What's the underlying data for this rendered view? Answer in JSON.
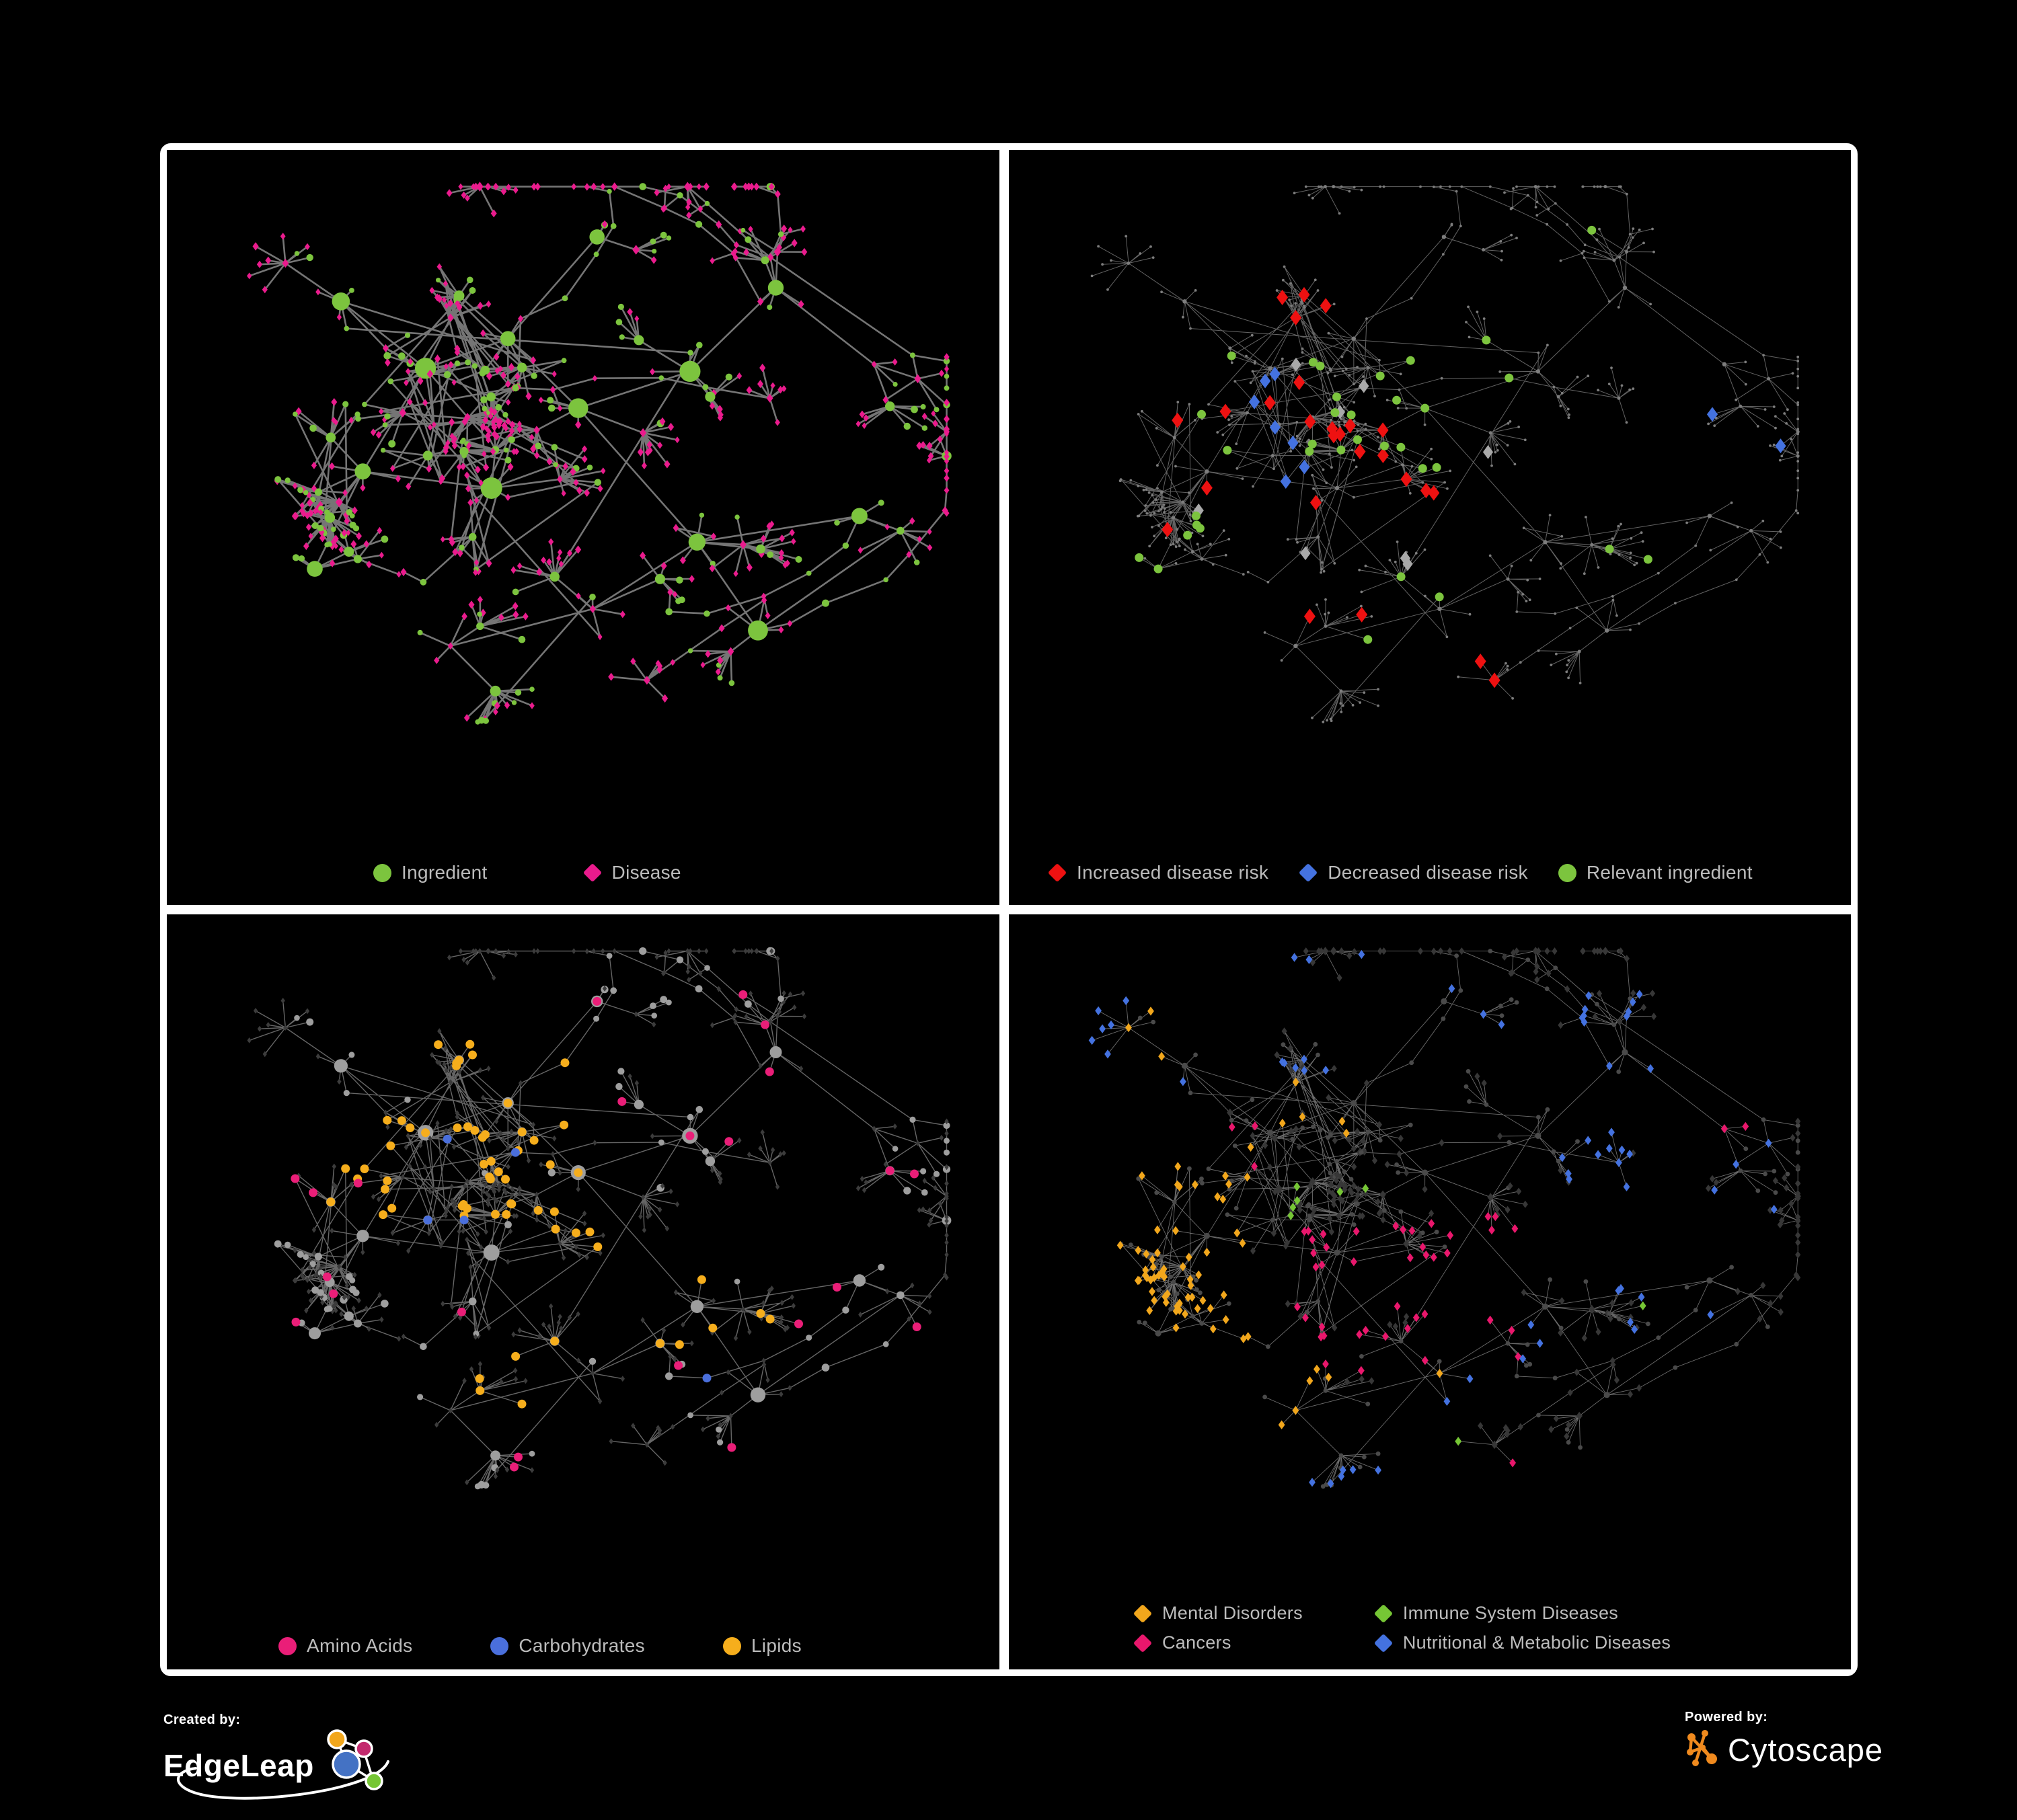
{
  "page": {
    "background": "#000000",
    "frame_color": "#ffffff",
    "legend_text_color": "#bcbcbc"
  },
  "panels": [
    {
      "id": "ingredient-disease",
      "legend": [
        {
          "label": "Ingredient",
          "shape": "circle",
          "color": "#7cc43e"
        },
        {
          "label": "Disease",
          "shape": "diamond",
          "color": "#ea1b8d"
        }
      ]
    },
    {
      "id": "disease-risk",
      "legend": [
        {
          "label": "Increased disease risk",
          "shape": "diamond",
          "color": "#ee1111"
        },
        {
          "label": "Decreased disease risk",
          "shape": "diamond",
          "color": "#4472e0"
        },
        {
          "label": "Relevant ingredient",
          "shape": "circle",
          "color": "#7cc43e"
        }
      ],
      "highlights": [
        {
          "name": "increased-disease-risk",
          "shape": "diamond",
          "color": "#ee1111",
          "size": 10,
          "regions": [
            [
              0.16,
              0.18,
              0.58,
              0.56,
              22
            ],
            [
              0.55,
              0.7,
              0.72,
              0.88,
              2
            ],
            [
              0.88,
              0.14,
              0.97,
              0.26,
              1
            ],
            [
              0.3,
              0.58,
              0.42,
              0.68,
              2
            ]
          ]
        },
        {
          "name": "decreased-disease-risk",
          "shape": "diamond",
          "color": "#4472e0",
          "size": 9.5,
          "regions": [
            [
              0.2,
              0.3,
              0.34,
              0.52,
              7
            ],
            [
              0.86,
              0.36,
              0.96,
              0.46,
              2
            ]
          ]
        },
        {
          "name": "no-significant-effect",
          "shape": "diamond",
          "color": "#a9a9a9",
          "size": 9,
          "regions": [
            [
              0.2,
              0.25,
              0.6,
              0.6,
              8
            ]
          ]
        },
        {
          "name": "relevant-ingredient",
          "shape": "circle",
          "color": "#7cc43e",
          "size": 6.5,
          "regions": [
            [
              0.18,
              0.22,
              0.62,
              0.55,
              26
            ],
            [
              0.42,
              0.6,
              0.56,
              0.74,
              3
            ],
            [
              0.7,
              0.55,
              0.8,
              0.66,
              2
            ],
            [
              0.12,
              0.58,
              0.24,
              0.7,
              2
            ],
            [
              0.63,
              0.08,
              0.72,
              0.16,
              1
            ]
          ]
        }
      ]
    },
    {
      "id": "ingredient-classes",
      "legend": [
        {
          "label": "Amino Acids",
          "shape": "circle",
          "color": "#ea1e78"
        },
        {
          "label": "Carbohydrates",
          "shape": "circle",
          "color": "#4a6fdc"
        },
        {
          "label": "Lipids",
          "shape": "circle",
          "color": "#f6ae1c"
        }
      ],
      "highlights": [
        {
          "name": "lipids",
          "shape": "circle",
          "color": "#f6ae1c",
          "size": 6.5,
          "regions": [
            [
              0.22,
              0.1,
              0.5,
              0.42,
              44
            ],
            [
              0.4,
              0.44,
              0.64,
              0.64,
              12
            ],
            [
              0.1,
              0.28,
              0.22,
              0.42,
              4
            ],
            [
              0.62,
              0.5,
              0.78,
              0.64,
              4
            ],
            [
              0.3,
              0.66,
              0.44,
              0.76,
              3
            ]
          ]
        },
        {
          "name": "carbohydrates",
          "shape": "circle",
          "color": "#4a6fdc",
          "size": 6.5,
          "regions": [
            [
              0.28,
              0.16,
              0.48,
              0.34,
              9
            ],
            [
              0.08,
              0.16,
              0.16,
              0.26,
              1
            ],
            [
              0.66,
              0.58,
              0.78,
              0.68,
              1
            ],
            [
              0.26,
              0.4,
              0.36,
              0.5,
              2
            ]
          ]
        },
        {
          "name": "amino-acids",
          "shape": "circle",
          "color": "#ea1e78",
          "size": 6.5,
          "regions": [
            [
              0.04,
              0.08,
              0.94,
              0.88,
              20
            ],
            [
              0.4,
              0.02,
              0.52,
              0.1,
              1
            ],
            [
              0.86,
              0.3,
              0.96,
              0.42,
              2
            ]
          ]
        }
      ]
    },
    {
      "id": "disease-classes",
      "legend_columns": 2,
      "legend": [
        {
          "label": "Mental Disorders",
          "shape": "diamond",
          "color": "#f2a71c"
        },
        {
          "label": "Immune System Diseases",
          "shape": "diamond",
          "color": "#76c635"
        },
        {
          "label": "Cancers",
          "shape": "diamond",
          "color": "#e9176c"
        },
        {
          "label": "Nutritional & Metabolic Diseases",
          "shape": "diamond",
          "color": "#4472e0"
        }
      ],
      "highlights": [
        {
          "name": "mental-disorders",
          "shape": "diamond",
          "color": "#f2a71c",
          "size": 5.8,
          "regions": [
            [
              0.03,
              0.3,
              0.27,
              0.62,
              80
            ],
            [
              0.28,
              0.18,
              0.44,
              0.3,
              5
            ],
            [
              0.26,
              0.62,
              0.38,
              0.74,
              5
            ],
            [
              0.1,
              0.1,
              0.2,
              0.22,
              3
            ],
            [
              0.44,
              0.66,
              0.52,
              0.74,
              2
            ]
          ]
        },
        {
          "name": "cancers",
          "shape": "diamond",
          "color": "#e9176c",
          "size": 5.8,
          "regions": [
            [
              0.32,
              0.42,
              0.62,
              0.66,
              42
            ],
            [
              0.84,
              0.18,
              0.97,
              0.3,
              6
            ],
            [
              0.28,
              0.84,
              0.46,
              0.96,
              4
            ],
            [
              0.58,
              0.78,
              0.7,
              0.88,
              2
            ],
            [
              0.18,
              0.28,
              0.3,
              0.4,
              3
            ],
            [
              0.06,
              0.64,
              0.16,
              0.74,
              2
            ]
          ]
        },
        {
          "name": "nutritional-metabolic-diseases",
          "shape": "diamond",
          "color": "#4472e0",
          "size": 5.8,
          "regions": [
            [
              0.48,
              0.58,
              0.66,
              0.74,
              16
            ],
            [
              0.66,
              0.08,
              0.95,
              0.46,
              26
            ],
            [
              0.28,
              0.02,
              0.62,
              0.2,
              12
            ],
            [
              0.04,
              0.04,
              0.2,
              0.3,
              7
            ],
            [
              0.28,
              0.72,
              0.5,
              0.86,
              6
            ],
            [
              0.72,
              0.52,
              0.9,
              0.7,
              6
            ],
            [
              0.6,
              0.88,
              0.72,
              0.96,
              3
            ]
          ]
        },
        {
          "name": "immune-system-diseases",
          "shape": "diamond",
          "color": "#76c635",
          "size": 5.8,
          "regions": [
            [
              0.32,
              0.3,
              0.6,
              0.62,
              6
            ],
            [
              0.38,
              0.76,
              0.54,
              0.88,
              2
            ],
            [
              0.08,
              0.58,
              0.18,
              0.68,
              1
            ],
            [
              0.74,
              0.5,
              0.86,
              0.6,
              1
            ],
            [
              0.44,
              0.06,
              0.54,
              0.14,
              1
            ]
          ]
        }
      ]
    }
  ],
  "network_style": {
    "ingredient-disease": {
      "edge": "#7b7b7b",
      "circle": "#7cc43e",
      "diamond": "#ea1b8d"
    },
    "disease-risk": {
      "edge": "#6e6e6e",
      "node": "#7d7d7d"
    },
    "ingredient-classes": {
      "edge": "#8e8e8e",
      "circle": "#9e9e9e",
      "diamond": "#3c3c3c"
    },
    "disease-classes": {
      "edge": "#9a9a9a",
      "circle": "#4a4a4a",
      "diamond": "#373737"
    }
  },
  "footer": {
    "created_by": "Created by:",
    "created_brand": "EdgeLeap",
    "powered_by": "Powered by:",
    "powered_brand": "Cytoscape",
    "edgeleap_colors": {
      "orange": "#f2a71c",
      "magenta": "#c32a6e",
      "blue": "#4472c4",
      "green": "#76c635"
    },
    "cytoscape_color": "#f08a1e"
  }
}
